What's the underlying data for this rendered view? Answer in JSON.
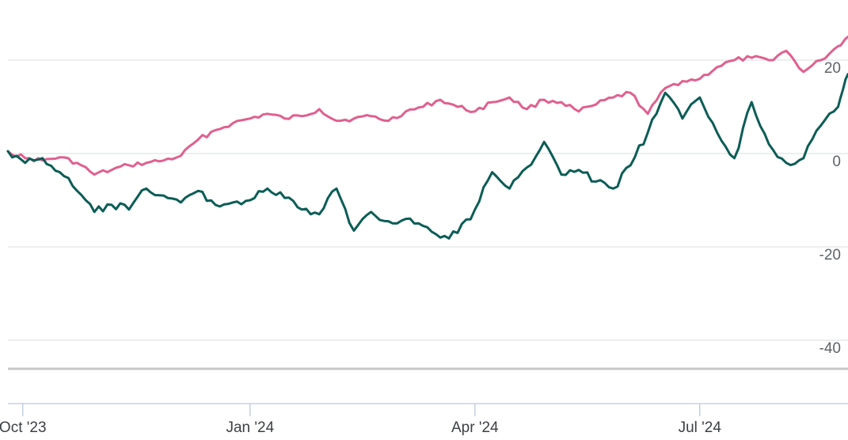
{
  "chart_data": {
    "type": "line",
    "title": "",
    "xlabel": "",
    "ylabel": "",
    "ylim": [
      -45,
      28
    ],
    "y_ticks": [
      20,
      0,
      -20,
      -40
    ],
    "y_tick_labels": [
      "20",
      "0",
      "-20",
      "-40"
    ],
    "x_range": [
      "2023-09-25",
      "2024-08-30"
    ],
    "x_ticks": [
      {
        "date": "2023-10-01",
        "label": "Oct '23"
      },
      {
        "date": "2024-01-01",
        "label": "Jan '24"
      },
      {
        "date": "2024-04-01",
        "label": "Apr '24"
      },
      {
        "date": "2024-07-01",
        "label": "Jul '24"
      }
    ],
    "grid": true,
    "series": [
      {
        "color": "#e0608f",
        "points": [
          [
            "2023-09-25",
            0.5
          ],
          [
            "2023-10-02",
            -1.0
          ],
          [
            "2023-10-09",
            -1.5
          ],
          [
            "2023-10-16",
            -0.8
          ],
          [
            "2023-10-23",
            -2.0
          ],
          [
            "2023-10-30",
            -4.5
          ],
          [
            "2023-11-06",
            -3.5
          ],
          [
            "2023-11-13",
            -2.5
          ],
          [
            "2023-11-20",
            -2.0
          ],
          [
            "2023-11-27",
            -1.5
          ],
          [
            "2023-12-04",
            -0.5
          ],
          [
            "2023-12-11",
            3.0
          ],
          [
            "2023-12-18",
            5.0
          ],
          [
            "2023-12-25",
            6.5
          ],
          [
            "2024-01-01",
            7.5
          ],
          [
            "2024-01-08",
            8.5
          ],
          [
            "2024-01-15",
            7.5
          ],
          [
            "2024-01-22",
            8.0
          ],
          [
            "2024-01-29",
            9.5
          ],
          [
            "2024-02-05",
            7.0
          ],
          [
            "2024-02-12",
            7.5
          ],
          [
            "2024-02-19",
            8.0
          ],
          [
            "2024-02-26",
            7.0
          ],
          [
            "2024-03-04",
            9.0
          ],
          [
            "2024-03-11",
            10.0
          ],
          [
            "2024-03-18",
            11.5
          ],
          [
            "2024-03-25",
            10.0
          ],
          [
            "2024-04-01",
            9.0
          ],
          [
            "2024-04-08",
            11.0
          ],
          [
            "2024-04-15",
            12.0
          ],
          [
            "2024-04-22",
            9.5
          ],
          [
            "2024-04-29",
            11.5
          ],
          [
            "2024-05-06",
            11.0
          ],
          [
            "2024-05-13",
            9.0
          ],
          [
            "2024-05-20",
            10.5
          ],
          [
            "2024-05-27",
            12.0
          ],
          [
            "2024-06-03",
            13.0
          ],
          [
            "2024-06-10",
            8.5
          ],
          [
            "2024-06-17",
            14.0
          ],
          [
            "2024-06-24",
            15.5
          ],
          [
            "2024-07-01",
            16.0
          ],
          [
            "2024-07-08",
            18.5
          ],
          [
            "2024-07-15",
            20.0
          ],
          [
            "2024-07-22",
            20.5
          ],
          [
            "2024-07-29",
            20.0
          ],
          [
            "2024-08-05",
            22.0
          ],
          [
            "2024-08-12",
            17.5
          ],
          [
            "2024-08-19",
            20.0
          ],
          [
            "2024-08-26",
            23.0
          ],
          [
            "2024-08-30",
            25.0
          ]
        ]
      },
      {
        "color": "#0b5d56",
        "points": [
          [
            "2023-09-25",
            0.5
          ],
          [
            "2023-10-02",
            -2.0
          ],
          [
            "2023-10-09",
            -1.0
          ],
          [
            "2023-10-16",
            -4.0
          ],
          [
            "2023-10-23",
            -8.0
          ],
          [
            "2023-10-30",
            -12.5
          ],
          [
            "2023-11-06",
            -11.0
          ],
          [
            "2023-11-13",
            -12.0
          ],
          [
            "2023-11-20",
            -7.5
          ],
          [
            "2023-11-27",
            -9.0
          ],
          [
            "2023-12-04",
            -10.5
          ],
          [
            "2023-12-11",
            -8.0
          ],
          [
            "2023-12-18",
            -11.0
          ],
          [
            "2023-12-25",
            -10.5
          ],
          [
            "2024-01-01",
            -10.0
          ],
          [
            "2024-01-08",
            -7.5
          ],
          [
            "2024-01-15",
            -9.5
          ],
          [
            "2024-01-22",
            -12.0
          ],
          [
            "2024-01-29",
            -13.0
          ],
          [
            "2024-02-05",
            -7.5
          ],
          [
            "2024-02-12",
            -16.5
          ],
          [
            "2024-02-19",
            -12.5
          ],
          [
            "2024-02-26",
            -14.5
          ],
          [
            "2024-03-04",
            -14.0
          ],
          [
            "2024-03-11",
            -15.5
          ],
          [
            "2024-03-18",
            -18.0
          ],
          [
            "2024-03-25",
            -17.0
          ],
          [
            "2024-04-01",
            -12.0
          ],
          [
            "2024-04-08",
            -4.0
          ],
          [
            "2024-04-15",
            -7.5
          ],
          [
            "2024-04-22",
            -3.0
          ],
          [
            "2024-04-29",
            2.5
          ],
          [
            "2024-05-06",
            -4.5
          ],
          [
            "2024-05-13",
            -3.5
          ],
          [
            "2024-05-20",
            -6.0
          ],
          [
            "2024-05-27",
            -7.5
          ],
          [
            "2024-06-03",
            -2.5
          ],
          [
            "2024-06-10",
            4.5
          ],
          [
            "2024-06-17",
            13.0
          ],
          [
            "2024-06-24",
            7.5
          ],
          [
            "2024-07-01",
            12.0
          ],
          [
            "2024-07-08",
            4.5
          ],
          [
            "2024-07-15",
            -1.0
          ],
          [
            "2024-07-22",
            11.0
          ],
          [
            "2024-07-29",
            2.0
          ],
          [
            "2024-08-05",
            -2.0
          ],
          [
            "2024-08-12",
            -1.0
          ],
          [
            "2024-08-19",
            6.0
          ],
          [
            "2024-08-26",
            10.0
          ],
          [
            "2024-08-30",
            17.0
          ]
        ]
      }
    ]
  }
}
